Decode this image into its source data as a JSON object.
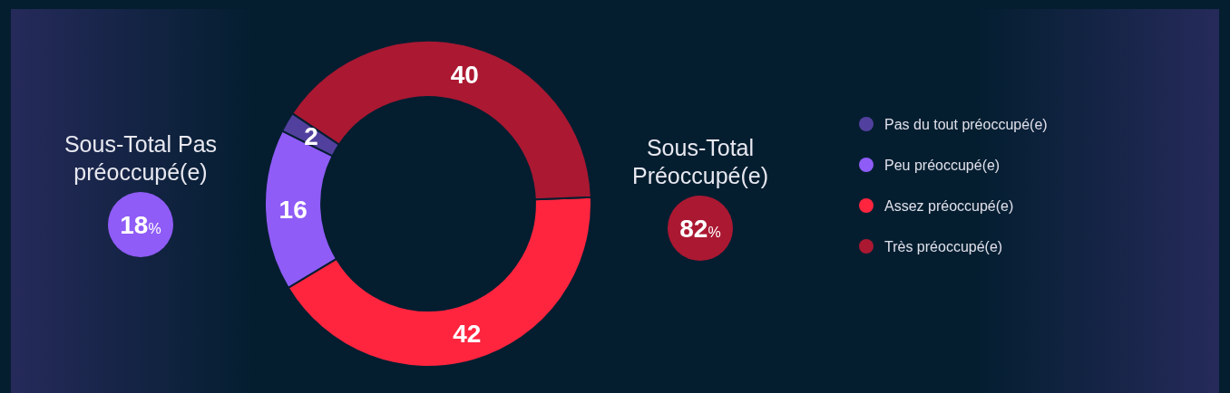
{
  "chart_data": {
    "type": "donut",
    "categories": [
      "Pas du tout préoccupé(e)",
      "Peu préoccupé(e)",
      "Assez préoccupé(e)",
      "Très préoccupé(e)"
    ],
    "values": [
      2,
      16,
      42,
      40
    ],
    "colors": [
      "#52409e",
      "#8f5cf7",
      "#ff253f",
      "#ab1832"
    ],
    "data_labels": true,
    "legend": "right",
    "annotations": [
      "Sous-Total Pas préoccupé(e)",
      "18%",
      "Sous-Total Préoccupé(e)",
      "82%"
    ]
  }
}
